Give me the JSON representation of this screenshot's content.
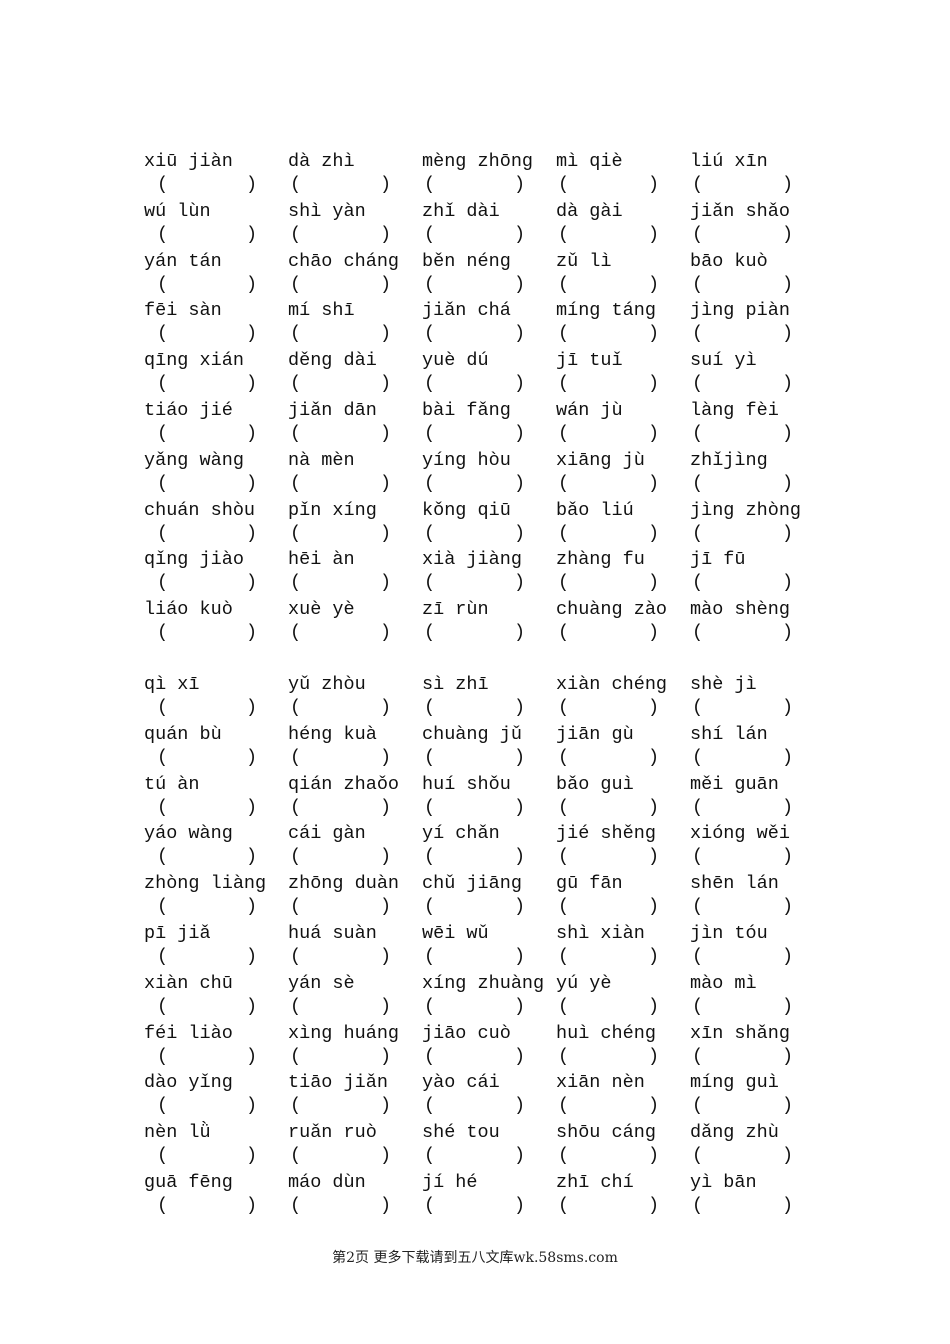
{
  "blocks": [
    {
      "rows": [
        [
          "xiū jiàn",
          "dà zhì",
          "mèng zhōng",
          "mì qiè",
          "liú xīn"
        ],
        [
          "wú lùn",
          "shì yàn",
          "zhǐ dài",
          "dà gài",
          "jiǎn shǎo"
        ],
        [
          "yán tán",
          "chāo cháng",
          "běn néng",
          "zǔ lì",
          "bāo kuò"
        ],
        [
          "fēi sàn",
          "mí shī",
          "jiǎn chá",
          "míng táng",
          "jìng piàn"
        ],
        [
          "qīng xián",
          "děng dài",
          "yuè dú",
          "jī tuǐ",
          "suí yì"
        ],
        [
          "tiáo jié",
          "jiǎn dān",
          "bài fǎng",
          "wán jù",
          "làng fèi"
        ],
        [
          "yǎng wàng",
          "nà mèn",
          "yíng hòu",
          "xiāng jù",
          "zhǐjìng"
        ],
        [
          "chuán shòu",
          "pǐn xíng",
          "kǒng qiū",
          "bǎo liú",
          "jìng zhòng"
        ],
        [
          "qǐng jiào",
          "hēi àn",
          "xià jiàng",
          "zhàng fu",
          "jī fū"
        ],
        [
          "liáo kuò",
          "xuè yè",
          "zī rùn",
          "chuàng zào",
          "mào shèng"
        ]
      ]
    },
    {
      "rows": [
        [
          "qì xī",
          "yǔ zhòu",
          "sì zhī",
          "xiàn chéng",
          "shè jì"
        ],
        [
          "quán bù",
          "héng kuà",
          "chuàng jǔ",
          "jiān gù",
          "shí lán"
        ],
        [
          "tú àn",
          "qián zhaǒo",
          "huí shǒu",
          "bǎo guì",
          "měi guān"
        ],
        [
          "yáo wàng",
          "cái gàn",
          "yí chǎn",
          "jié shěng",
          "xióng wěi"
        ],
        [
          "zhòng liàng",
          "zhōng duàn",
          "chǔ jiāng",
          "gū fān",
          "shēn lán"
        ],
        [
          "pī jiǎ",
          "huá suàn",
          "wēi wǔ",
          "shì xiàn",
          "jìn tóu"
        ],
        [
          "xiàn chū",
          "yán sè",
          "xíng zhuàng",
          "yú yè",
          "mào mì"
        ],
        [
          "féi liào",
          "xìng huáng",
          "jiāo cuò",
          "huì chéng",
          "xīn shǎng"
        ],
        [
          "dào yǐng",
          "tiāo jiǎn",
          "yào cái",
          "xiān nèn",
          "míng guì"
        ],
        [
          "nèn lǜ",
          "ruǎn ruò",
          "shé tou",
          "shōu cáng",
          "dǎng zhù"
        ],
        [
          "guā fēng",
          "máo dùn",
          "jí hé",
          "zhī chí",
          "yì bān"
        ]
      ]
    }
  ],
  "paren_open": "(",
  "paren_close": ")",
  "footer": "第2页 更多下载请到五八文库wk.58sms.com"
}
